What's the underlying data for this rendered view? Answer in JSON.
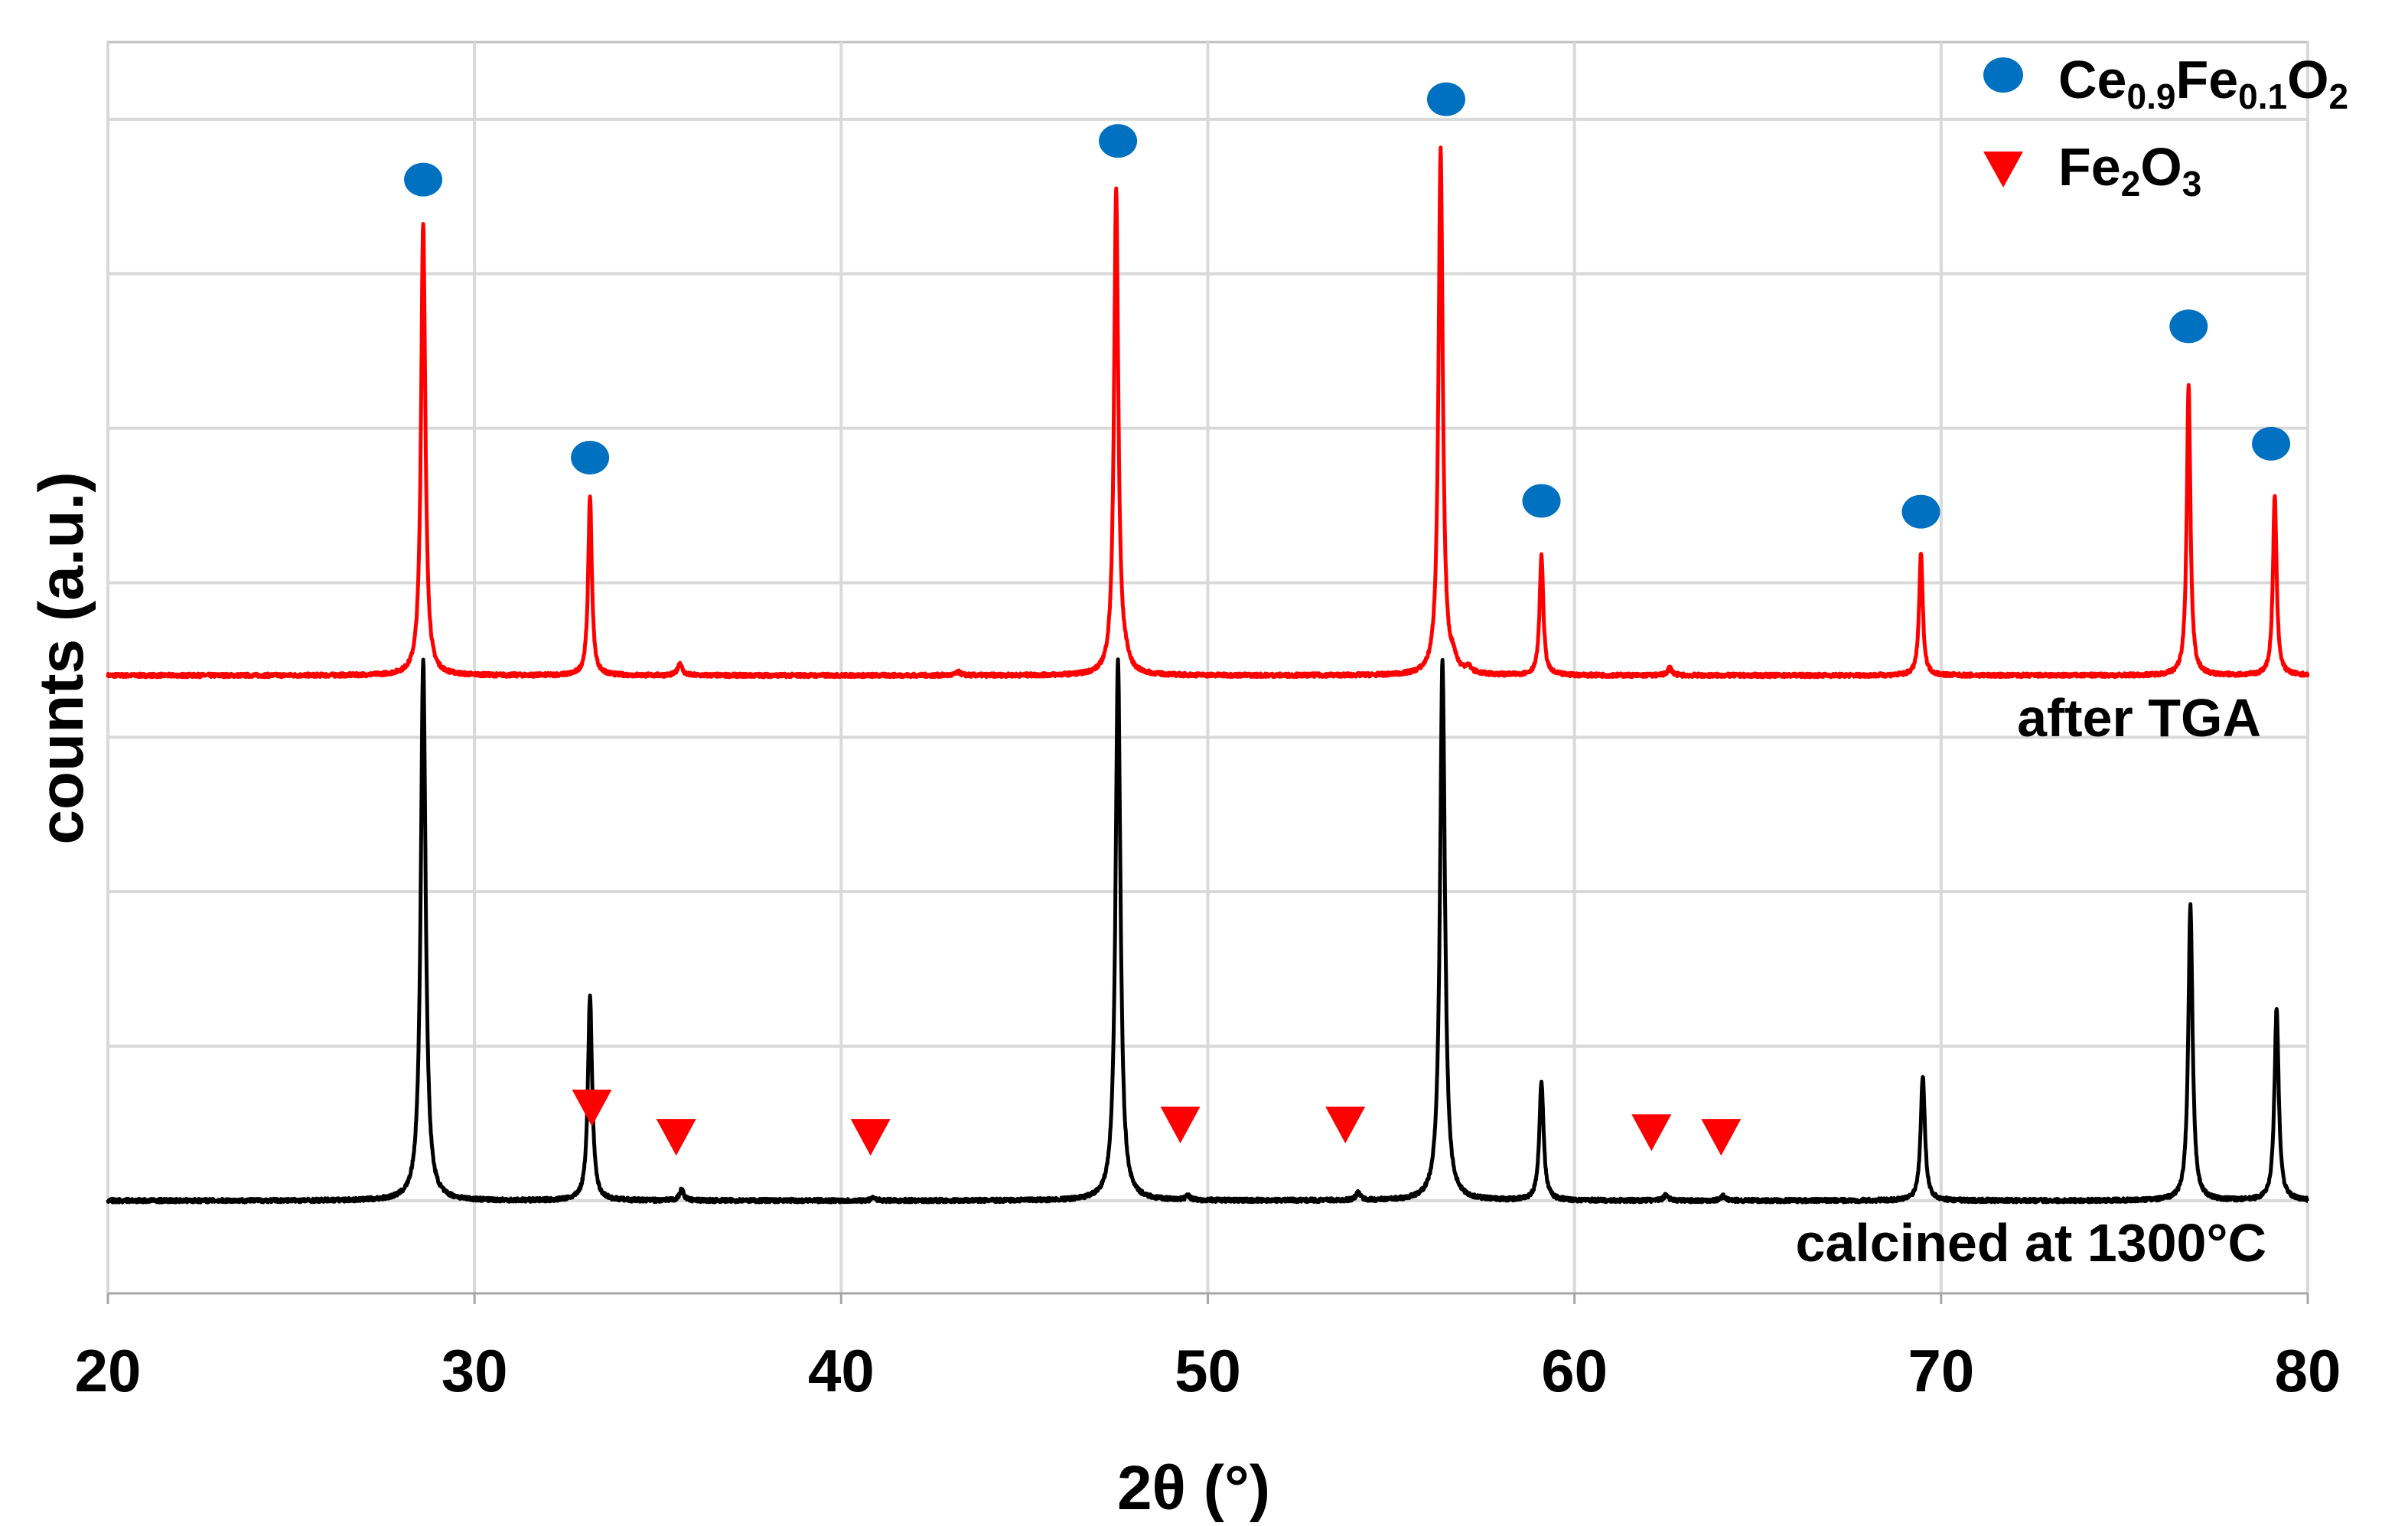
{
  "chart_data": {
    "type": "line",
    "xlabel": "2θ (°)",
    "ylabel": "counts (a.u.)",
    "xlim": [
      20,
      80
    ],
    "ylim": [
      -0.6,
      7.5
    ],
    "xticks": [
      20,
      30,
      40,
      50,
      60,
      70,
      80
    ],
    "y_gridlines": [
      0,
      1,
      2,
      3,
      4,
      5,
      6,
      7,
      8
    ],
    "grid": true,
    "legend_position": "top-right",
    "legend": [
      {
        "marker": "circle",
        "color": "#0070c0",
        "base": "Ce",
        "sub1": "0.9",
        "mid": "Fe",
        "sub2": "0.1",
        "tail": "O",
        "sub3": "2"
      },
      {
        "marker": "triangle-down",
        "color": "#ff0000",
        "base": "Fe",
        "sub1": "2",
        "mid": "O",
        "sub2": "3",
        "tail": "",
        "sub3": ""
      }
    ],
    "series": [
      {
        "name": "after TGA",
        "color": "#ff0000",
        "baseline": 3.4,
        "noise": 0.012,
        "peaks": [
          {
            "x": 28.6,
            "h": 2.93,
            "w": 0.07
          },
          {
            "x": 33.15,
            "h": 1.16,
            "w": 0.06
          },
          {
            "x": 35.6,
            "h": 0.08,
            "w": 0.07
          },
          {
            "x": 43.2,
            "h": 0.02,
            "w": 0.08
          },
          {
            "x": 47.5,
            "h": 3.13,
            "w": 0.07
          },
          {
            "x": 47.75,
            "h": 0.06,
            "w": 0.12
          },
          {
            "x": 56.35,
            "h": 3.4,
            "w": 0.07
          },
          {
            "x": 56.7,
            "h": 0.07,
            "w": 0.1
          },
          {
            "x": 57.1,
            "h": 0.04,
            "w": 0.1
          },
          {
            "x": 59.1,
            "h": 0.78,
            "w": 0.06
          },
          {
            "x": 62.6,
            "h": 0.05,
            "w": 0.07
          },
          {
            "x": 69.45,
            "h": 0.79,
            "w": 0.06
          },
          {
            "x": 76.75,
            "h": 1.88,
            "w": 0.06
          },
          {
            "x": 79.1,
            "h": 1.16,
            "w": 0.06
          }
        ]
      },
      {
        "name": "calcined at 1300°C",
        "color": "#000000",
        "baseline": 0.0,
        "noise": 0.012,
        "peaks": [
          {
            "x": 28.6,
            "h": 3.5,
            "w": 0.08
          },
          {
            "x": 33.15,
            "h": 1.32,
            "w": 0.07
          },
          {
            "x": 35.65,
            "h": 0.07,
            "w": 0.07
          },
          {
            "x": 40.9,
            "h": 0.02,
            "w": 0.07
          },
          {
            "x": 47.55,
            "h": 3.5,
            "w": 0.08
          },
          {
            "x": 49.45,
            "h": 0.03,
            "w": 0.07
          },
          {
            "x": 54.1,
            "h": 0.05,
            "w": 0.07
          },
          {
            "x": 56.4,
            "h": 3.5,
            "w": 0.08
          },
          {
            "x": 59.1,
            "h": 0.77,
            "w": 0.07
          },
          {
            "x": 62.5,
            "h": 0.04,
            "w": 0.07
          },
          {
            "x": 64.05,
            "h": 0.03,
            "w": 0.07
          },
          {
            "x": 69.5,
            "h": 0.81,
            "w": 0.07
          },
          {
            "x": 76.8,
            "h": 1.91,
            "w": 0.07
          },
          {
            "x": 79.15,
            "h": 1.24,
            "w": 0.07
          }
        ]
      }
    ],
    "markers": {
      "ceria": {
        "color": "#0070c0",
        "points": [
          {
            "x": 28.6,
            "y": 6.61
          },
          {
            "x": 33.15,
            "y": 4.81
          },
          {
            "x": 47.55,
            "y": 6.86
          },
          {
            "x": 56.5,
            "y": 7.13
          },
          {
            "x": 59.1,
            "y": 4.53
          },
          {
            "x": 69.45,
            "y": 4.46
          },
          {
            "x": 76.75,
            "y": 5.66
          },
          {
            "x": 79.0,
            "y": 4.9
          }
        ]
      },
      "hematite": {
        "color": "#ff0000",
        "points": [
          {
            "x": 33.2,
            "y": 0.6
          },
          {
            "x": 35.5,
            "y": 0.41
          },
          {
            "x": 40.8,
            "y": 0.41
          },
          {
            "x": 49.25,
            "y": 0.49
          },
          {
            "x": 53.75,
            "y": 0.49
          },
          {
            "x": 62.1,
            "y": 0.44
          },
          {
            "x": 64.0,
            "y": 0.41
          }
        ]
      }
    }
  }
}
